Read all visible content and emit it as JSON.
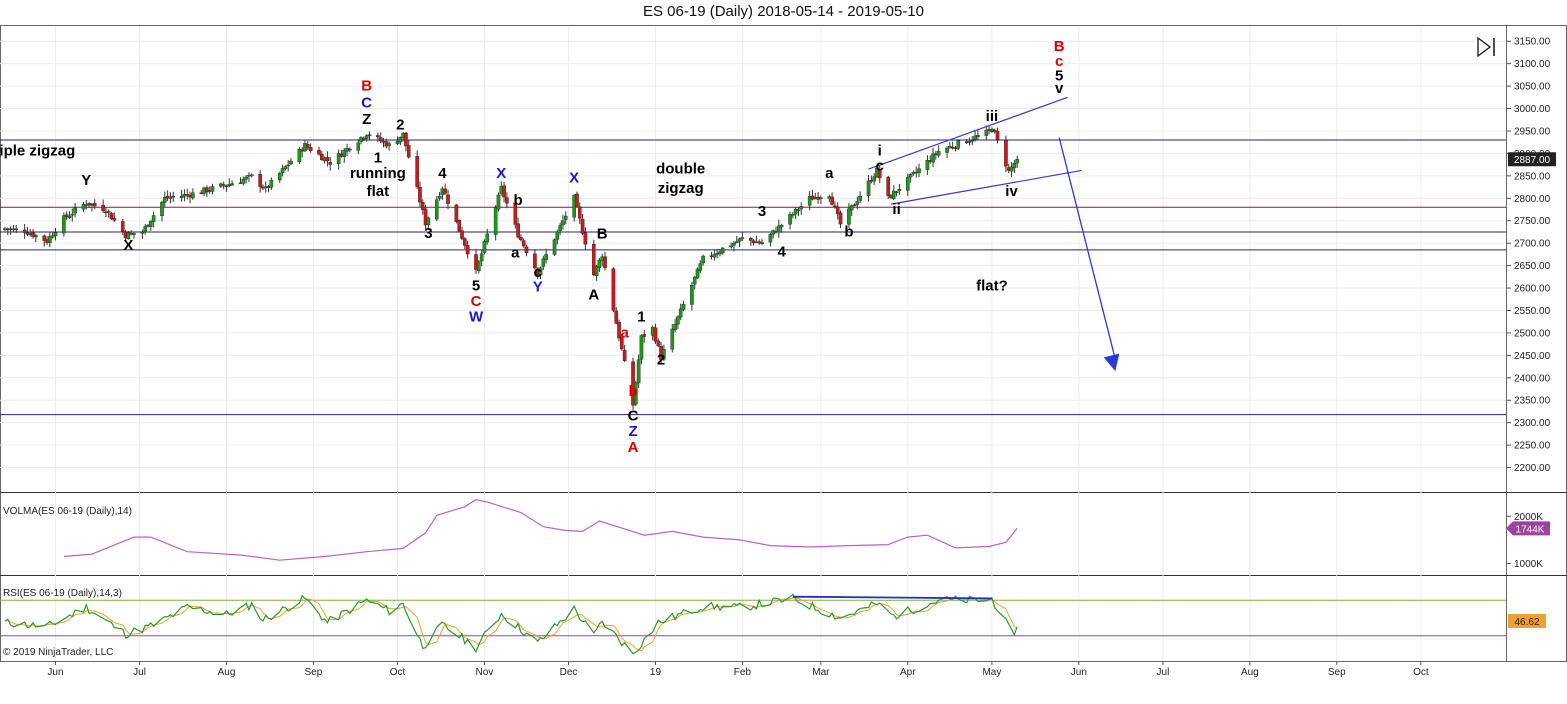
{
  "header": {
    "title": "ES 06-19 (Daily)  2018-05-14 - 2019-05-10"
  },
  "copyright": "© 2019 NinjaTrader, LLC",
  "colors": {
    "bull": "#1a9a1a",
    "bear": "#d01818",
    "wick": "#333333",
    "hline": "#23237a",
    "hline_red": "#7a2040",
    "wave_black": "#000000",
    "wave_red": "#e00000",
    "wave_blue": "#1818d0",
    "volma": "#c060c0",
    "rsi": "#2a9a2a",
    "rsi_signal": "#f0a030",
    "channel": "#3a3ad0",
    "arrow": "#2a3ad8"
  },
  "chart_data": [
    {
      "type": "candlestick",
      "title": "ES 06-19 (Daily)  2018-05-14 - 2019-05-10",
      "ylim": [
        2150,
        3175
      ],
      "y_ticks": [
        2200,
        2250,
        2300,
        2350,
        2400,
        2450,
        2500,
        2550,
        2600,
        2650,
        2700,
        2750,
        2800,
        2850,
        2900,
        2950,
        3000,
        3050,
        3100,
        3150
      ],
      "y_tick_labels": [
        "2200.00",
        "2250.00",
        "2300.00",
        "2350.00",
        "2400.00",
        "2450.00",
        "2500.00",
        "2550.00",
        "2600.00",
        "2650.00",
        "2700.00",
        "2750.00",
        "2800.00",
        "2850.00",
        "2900.00",
        "2950.00",
        "3000.00",
        "3050.00",
        "3100.00",
        "3150.00"
      ],
      "x_ticks": [
        "Jun",
        "Jul",
        "Aug",
        "Sep",
        "Oct",
        "Nov",
        "Dec",
        "19",
        "Feb",
        "Mar",
        "Apr",
        "May",
        "Jun",
        "Jul",
        "Aug",
        "Sep",
        "Oct"
      ],
      "x_tick_dates": [
        "2018-06-01",
        "2018-07-01",
        "2018-08-01",
        "2018-09-01",
        "2018-10-01",
        "2018-11-01",
        "2018-12-01",
        "2019-01-01",
        "2019-02-01",
        "2019-03-01",
        "2019-04-01",
        "2019-05-01",
        "2019-06-01",
        "2019-07-01",
        "2019-08-01",
        "2019-09-01",
        "2019-10-01"
      ],
      "last_price_label": "2887.00",
      "last_price": 2887,
      "horizontal_lines": [
        2930,
        2780,
        2725,
        2685,
        2318
      ],
      "price_path": [
        [
          "2018-05-14",
          2732
        ],
        [
          "2018-05-21",
          2728
        ],
        [
          "2018-05-29",
          2705
        ],
        [
          "2018-06-04",
          2755
        ],
        [
          "2018-06-12",
          2790
        ],
        [
          "2018-06-19",
          2775
        ],
        [
          "2018-06-26",
          2718
        ],
        [
          "2018-07-02",
          2725
        ],
        [
          "2018-07-10",
          2800
        ],
        [
          "2018-07-20",
          2810
        ],
        [
          "2018-08-01",
          2830
        ],
        [
          "2018-08-10",
          2848
        ],
        [
          "2018-08-15",
          2820
        ],
        [
          "2018-08-29",
          2918
        ],
        [
          "2018-09-07",
          2880
        ],
        [
          "2018-09-20",
          2945
        ],
        [
          "2018-09-28",
          2918
        ],
        [
          "2018-10-03",
          2942
        ],
        [
          "2018-10-11",
          2745
        ],
        [
          "2018-10-17",
          2825
        ],
        [
          "2018-10-29",
          2635
        ],
        [
          "2018-11-07",
          2822
        ],
        [
          "2018-11-13",
          2720
        ],
        [
          "2018-11-20",
          2635
        ],
        [
          "2018-12-03",
          2800
        ],
        [
          "2018-12-10",
          2630
        ],
        [
          "2018-12-13",
          2675
        ],
        [
          "2018-12-24",
          2340
        ],
        [
          "2018-12-27",
          2490
        ],
        [
          "2018-12-31",
          2510
        ],
        [
          "2019-01-03",
          2445
        ],
        [
          "2019-01-18",
          2665
        ],
        [
          "2019-02-01",
          2710
        ],
        [
          "2019-02-08",
          2700
        ],
        [
          "2019-02-25",
          2800
        ],
        [
          "2019-03-04",
          2810
        ],
        [
          "2019-03-08",
          2742
        ],
        [
          "2019-03-21",
          2862
        ],
        [
          "2019-03-25",
          2800
        ],
        [
          "2019-04-12",
          2905
        ],
        [
          "2019-04-30",
          2948
        ],
        [
          "2019-05-01",
          2960
        ],
        [
          "2019-05-07",
          2860
        ],
        [
          "2019-05-10",
          2887
        ]
      ],
      "channel_lines": [
        {
          "from": [
            "2019-03-18",
            2865
          ],
          "to": [
            "2019-05-28",
            3025
          ]
        },
        {
          "from": [
            "2019-03-26",
            2787
          ],
          "to": [
            "2019-06-02",
            2862
          ]
        }
      ],
      "projection_arrow": {
        "from": [
          "2019-05-25",
          2935
        ],
        "to": [
          "2019-06-14",
          2415
        ]
      },
      "wave_labels": [
        {
          "text": "Y",
          "date": "2018-06-12",
          "price": 2830,
          "color": "black"
        },
        {
          "text": "X",
          "date": "2018-06-27",
          "price": 2685,
          "color": "black"
        },
        {
          "text": "B",
          "date": "2018-09-20",
          "price": 3040,
          "color": "red"
        },
        {
          "text": "C",
          "date": "2018-09-20",
          "price": 3002,
          "color": "blue"
        },
        {
          "text": "Z",
          "date": "2018-09-20",
          "price": 2965,
          "color": "black"
        },
        {
          "text": "1",
          "date": "2018-09-24",
          "price": 2880,
          "color": "black"
        },
        {
          "text": "2",
          "date": "2018-10-02",
          "price": 2953,
          "color": "black"
        },
        {
          "text": "3",
          "date": "2018-10-12",
          "price": 2712,
          "color": "black"
        },
        {
          "text": "4",
          "date": "2018-10-17",
          "price": 2845,
          "color": "black"
        },
        {
          "text": "5",
          "date": "2018-10-29",
          "price": 2595,
          "color": "black"
        },
        {
          "text": "C",
          "date": "2018-10-29",
          "price": 2560,
          "color": "red"
        },
        {
          "text": "W",
          "date": "2018-10-29",
          "price": 2525,
          "color": "blue"
        },
        {
          "text": "X",
          "date": "2018-11-07",
          "price": 2845,
          "color": "blue"
        },
        {
          "text": "b",
          "date": "2018-11-13",
          "price": 2785,
          "color": "black"
        },
        {
          "text": "a",
          "date": "2018-11-12",
          "price": 2668,
          "color": "black"
        },
        {
          "text": "c",
          "date": "2018-11-20",
          "price": 2625,
          "color": "black"
        },
        {
          "text": "Y",
          "date": "2018-11-20",
          "price": 2592,
          "color": "blue"
        },
        {
          "text": "X",
          "date": "2018-12-03",
          "price": 2835,
          "color": "blue"
        },
        {
          "text": "B",
          "date": "2018-12-13",
          "price": 2710,
          "color": "black"
        },
        {
          "text": "A",
          "date": "2018-12-10",
          "price": 2575,
          "color": "black"
        },
        {
          "text": "a",
          "date": "2018-12-21",
          "price": 2490,
          "color": "red"
        },
        {
          "text": "b",
          "date": "2018-12-24",
          "price": 2360,
          "color": "red"
        },
        {
          "text": "1",
          "date": "2018-12-27",
          "price": 2525,
          "color": "black"
        },
        {
          "text": "2",
          "date": "2019-01-03",
          "price": 2430,
          "color": "black"
        },
        {
          "text": "C",
          "date": "2018-12-24",
          "price": 2305,
          "color": "black"
        },
        {
          "text": "Z",
          "date": "2018-12-24",
          "price": 2270,
          "color": "blue"
        },
        {
          "text": "A",
          "date": "2018-12-24",
          "price": 2235,
          "color": "red"
        },
        {
          "text": "3",
          "date": "2019-02-08",
          "price": 2760,
          "color": "black"
        },
        {
          "text": "4",
          "date": "2019-02-15",
          "price": 2670,
          "color": "black"
        },
        {
          "text": "a",
          "date": "2019-03-04",
          "price": 2845,
          "color": "black"
        },
        {
          "text": "b",
          "date": "2019-03-11",
          "price": 2715,
          "color": "black"
        },
        {
          "text": "i",
          "date": "2019-03-22",
          "price": 2895,
          "color": "black"
        },
        {
          "text": "c",
          "date": "2019-03-22",
          "price": 2862,
          "color": "black"
        },
        {
          "text": "ii",
          "date": "2019-03-28",
          "price": 2765,
          "color": "black"
        },
        {
          "text": "iii",
          "date": "2019-05-01",
          "price": 2972,
          "color": "black"
        },
        {
          "text": "iv",
          "date": "2019-05-08",
          "price": 2805,
          "color": "black"
        },
        {
          "text": "B",
          "date": "2019-05-25",
          "price": 3128,
          "color": "red"
        },
        {
          "text": "c",
          "date": "2019-05-25",
          "price": 3095,
          "color": "red"
        },
        {
          "text": "5",
          "date": "2019-05-25",
          "price": 3062,
          "color": "black"
        },
        {
          "text": "v",
          "date": "2019-05-25",
          "price": 3035,
          "color": "black"
        }
      ],
      "annotations": [
        {
          "text": "iple zigzag",
          "date": "2018-05-12",
          "price": 2895
        },
        {
          "text": "running",
          "date": "2018-09-24",
          "price": 2845
        },
        {
          "text": "flat",
          "date": "2018-09-24",
          "price": 2805
        },
        {
          "text": "double",
          "date": "2019-01-10",
          "price": 2855
        },
        {
          "text": "zigzag",
          "date": "2019-01-10",
          "price": 2812
        },
        {
          "text": "flat?",
          "date": "2019-05-01",
          "price": 2595
        }
      ]
    },
    {
      "type": "line",
      "title": "VOLMA(ES 06-19 (Daily),14)",
      "y_tick_labels": [
        "2000K",
        "1000K"
      ],
      "y_ticks": [
        2000,
        1000
      ],
      "ylim": [
        800,
        2450
      ],
      "last_value_label": "1744K",
      "series": [
        {
          "values": [
            [
              "2018-06-04",
              1150
            ],
            [
              "2018-06-14",
              1200
            ],
            [
              "2018-06-29",
              1560
            ],
            [
              "2018-07-05",
              1560
            ],
            [
              "2018-07-18",
              1250
            ],
            [
              "2018-08-06",
              1180
            ],
            [
              "2018-08-20",
              1070
            ],
            [
              "2018-09-05",
              1150
            ],
            [
              "2018-09-20",
              1250
            ],
            [
              "2018-10-03",
              1320
            ],
            [
              "2018-10-11",
              1650
            ],
            [
              "2018-10-15",
              2020
            ],
            [
              "2018-10-25",
              2200
            ],
            [
              "2018-10-29",
              2350
            ],
            [
              "2018-11-02",
              2300
            ],
            [
              "2018-11-14",
              2080
            ],
            [
              "2018-11-22",
              1780
            ],
            [
              "2018-11-30",
              1700
            ],
            [
              "2018-12-06",
              1680
            ],
            [
              "2018-12-12",
              1900
            ],
            [
              "2018-12-20",
              1750
            ],
            [
              "2018-12-28",
              1600
            ],
            [
              "2019-01-07",
              1680
            ],
            [
              "2019-01-18",
              1560
            ],
            [
              "2019-01-31",
              1500
            ],
            [
              "2019-02-11",
              1380
            ],
            [
              "2019-02-25",
              1350
            ],
            [
              "2019-03-11",
              1380
            ],
            [
              "2019-03-25",
              1400
            ],
            [
              "2019-04-01",
              1560
            ],
            [
              "2019-04-08",
              1600
            ],
            [
              "2019-04-18",
              1330
            ],
            [
              "2019-04-30",
              1360
            ],
            [
              "2019-05-06",
              1450
            ],
            [
              "2019-05-10",
              1744
            ]
          ]
        }
      ]
    },
    {
      "type": "line",
      "title": "RSI(ES 06-19 (Daily),14,3)",
      "ylim": [
        5,
        95
      ],
      "levels": [
        70,
        30
      ],
      "last_value_label": "46.62",
      "divergence_line": {
        "from": [
          "2019-02-19",
          74
        ],
        "to": [
          "2019-05-01",
          72
        ]
      },
      "series": [
        {
          "values": [
            [
              "2018-05-14",
              45
            ],
            [
              "2018-05-29",
              40
            ],
            [
              "2018-06-12",
              62
            ],
            [
              "2018-06-26",
              32
            ],
            [
              "2018-07-06",
              42
            ],
            [
              "2018-07-18",
              62
            ],
            [
              "2018-08-01",
              54
            ],
            [
              "2018-08-10",
              65
            ],
            [
              "2018-08-14",
              48
            ],
            [
              "2018-08-29",
              72
            ],
            [
              "2018-09-06",
              45
            ],
            [
              "2018-09-20",
              70
            ],
            [
              "2018-09-28",
              58
            ],
            [
              "2018-10-03",
              66
            ],
            [
              "2018-10-10",
              18
            ],
            [
              "2018-10-17",
              42
            ],
            [
              "2018-10-29",
              17
            ],
            [
              "2018-11-07",
              55
            ],
            [
              "2018-11-20",
              22
            ],
            [
              "2018-12-03",
              60
            ],
            [
              "2018-12-10",
              30
            ],
            [
              "2018-12-13",
              46
            ],
            [
              "2018-12-24",
              10
            ],
            [
              "2019-01-02",
              45
            ],
            [
              "2019-01-18",
              63
            ],
            [
              "2019-02-01",
              62
            ],
            [
              "2019-02-19",
              72
            ],
            [
              "2019-03-08",
              50
            ],
            [
              "2019-03-21",
              66
            ],
            [
              "2019-03-27",
              52
            ],
            [
              "2019-04-12",
              70
            ],
            [
              "2019-04-30",
              70
            ],
            [
              "2019-05-01",
              72
            ],
            [
              "2019-05-08",
              33
            ],
            [
              "2019-05-10",
              38
            ]
          ]
        }
      ]
    }
  ]
}
